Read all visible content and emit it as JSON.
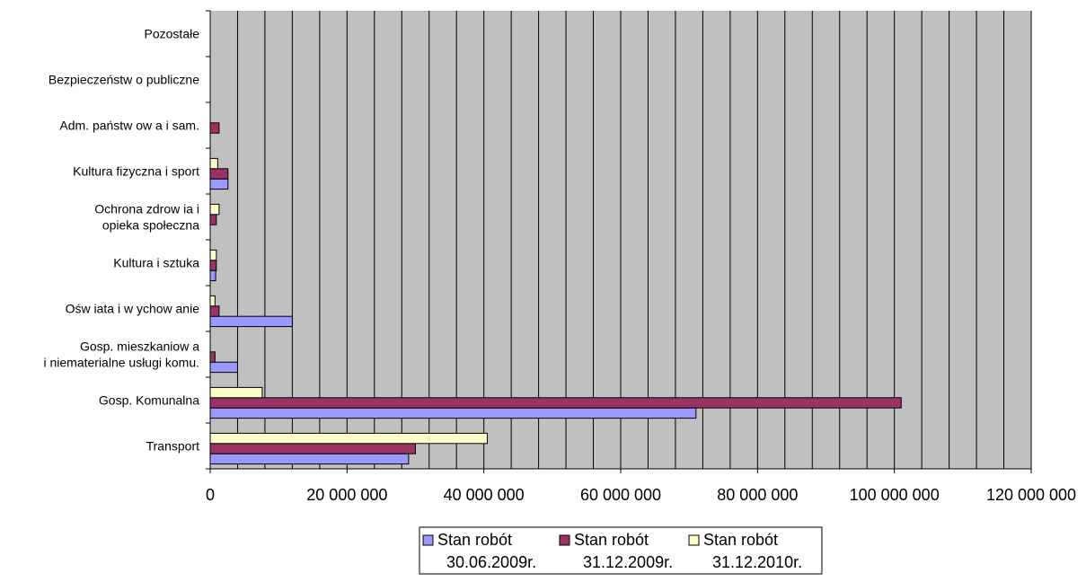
{
  "chart_data": {
    "type": "bar",
    "orientation": "horizontal",
    "title": "",
    "xlabel": "",
    "ylabel": "",
    "categories": [
      [
        "Transport"
      ],
      [
        "Gosp. Komunalna"
      ],
      [
        "Gosp. mieszkaniow a",
        "i niematerialne usługi komu."
      ],
      [
        "Ośw iata i w ychow anie"
      ],
      [
        "Kultura i sztuka"
      ],
      [
        "Ochrona zdrow ia i",
        "opieka społeczna"
      ],
      [
        "Kultura fizyczna i sport"
      ],
      [
        "Adm. państw ow a i sam."
      ],
      [
        "Bezpieczeństw o publiczne"
      ],
      [
        "Pozostałe"
      ]
    ],
    "series": [
      {
        "name": [
          "Stan robót",
          "30.06.2009r."
        ],
        "color": "#9999ff",
        "values": [
          29000000,
          71000000,
          4000000,
          12000000,
          800000,
          0,
          2600000,
          0,
          0,
          0
        ]
      },
      {
        "name": [
          "Stan robót",
          "31.12.2009r."
        ],
        "color": "#993366",
        "values": [
          30000000,
          101000000,
          700000,
          1300000,
          900000,
          900000,
          2600000,
          1300000,
          0,
          0
        ]
      },
      {
        "name": [
          "Stan robót",
          "31.12.2010r."
        ],
        "color": "#ffffcc",
        "values": [
          40500000,
          7600000,
          0,
          700000,
          900000,
          1300000,
          1100000,
          0,
          0,
          0
        ]
      }
    ],
    "xlim": [
      0,
      120000000
    ],
    "tick_values": [
      0,
      20000000,
      40000000,
      60000000,
      80000000,
      100000000,
      120000000
    ],
    "tick_labels": [
      "0",
      "20 000 000",
      "40 000 000",
      "60 000 000",
      "80 000 000",
      "100 000 000",
      "120 000 000"
    ],
    "minor_gridline_step": 4000000,
    "grid": true,
    "plot_background": "#c0c0c0",
    "legend_position": "bottom"
  }
}
